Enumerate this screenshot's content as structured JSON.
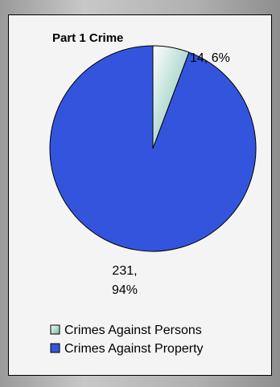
{
  "chart_data": {
    "type": "pie",
    "title": "Part 1 Crime",
    "categories": [
      "Crimes Against Persons",
      "Crimes Against Property"
    ],
    "values": [
      14,
      231
    ],
    "value_labels": [
      "14, 6%",
      "231, 94%"
    ],
    "colors": [
      "#c8f4f0",
      "#3355dd"
    ],
    "legend": "bottom"
  }
}
